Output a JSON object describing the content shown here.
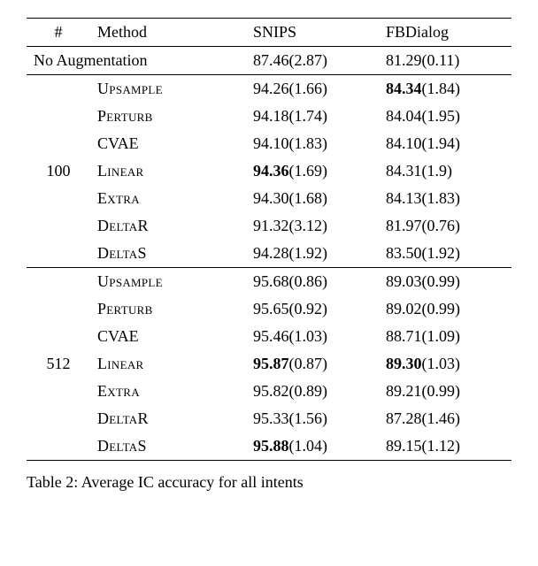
{
  "header": {
    "hash": "#",
    "method": "Method",
    "c1": "SNIPS",
    "c2": "FBDialog"
  },
  "noaug": {
    "label": "No Augmentation",
    "snips": "87.46(2.87)",
    "fb": "81.29(0.11)"
  },
  "groups": [
    {
      "n": "100",
      "rows": [
        {
          "m": "Upsample",
          "s": "94.26(1.66)",
          "f_bold": "84.34",
          "f_rest": "(1.84)"
        },
        {
          "m": "Perturb",
          "s": "94.18(1.74)",
          "f": "84.04(1.95)"
        },
        {
          "m": "CVAE",
          "plain": true,
          "s": "94.10(1.83)",
          "f": "84.10(1.94)"
        },
        {
          "m": "Linear",
          "s_bold": "94.36",
          "s_rest": "(1.69)",
          "f": "84.31(1.9)"
        },
        {
          "m": "Extra",
          "s": "94.30(1.68)",
          "f": "84.13(1.83)"
        },
        {
          "m": "DeltaR",
          "s": "91.32(3.12)",
          "f": "81.97(0.76)"
        },
        {
          "m": "DeltaS",
          "s": "94.28(1.92)",
          "f": "83.50(1.92)"
        }
      ]
    },
    {
      "n": "512",
      "rows": [
        {
          "m": "Upsample",
          "s": "95.68(0.86)",
          "f": "89.03(0.99)"
        },
        {
          "m": "Perturb",
          "s": "95.65(0.92)",
          "f": "89.02(0.99)"
        },
        {
          "m": "CVAE",
          "plain": true,
          "s": "95.46(1.03)",
          "f": "88.71(1.09)"
        },
        {
          "m": "Linear",
          "s_bold": "95.87",
          "s_rest": "(0.87)",
          "f_bold": "89.30",
          "f_rest": "(1.03)"
        },
        {
          "m": "Extra",
          "s": "95.82(0.89)",
          "f": "89.21(0.99)"
        },
        {
          "m": "DeltaR",
          "s": "95.33(1.56)",
          "f": "87.28(1.46)"
        },
        {
          "m": "DeltaS",
          "s_bold": "95.88",
          "s_rest": "(1.04)",
          "f": "89.15(1.12)"
        }
      ]
    }
  ],
  "caption": {
    "prefix": "Table 2: ",
    "rest": "Average IC accuracy for all intents"
  }
}
